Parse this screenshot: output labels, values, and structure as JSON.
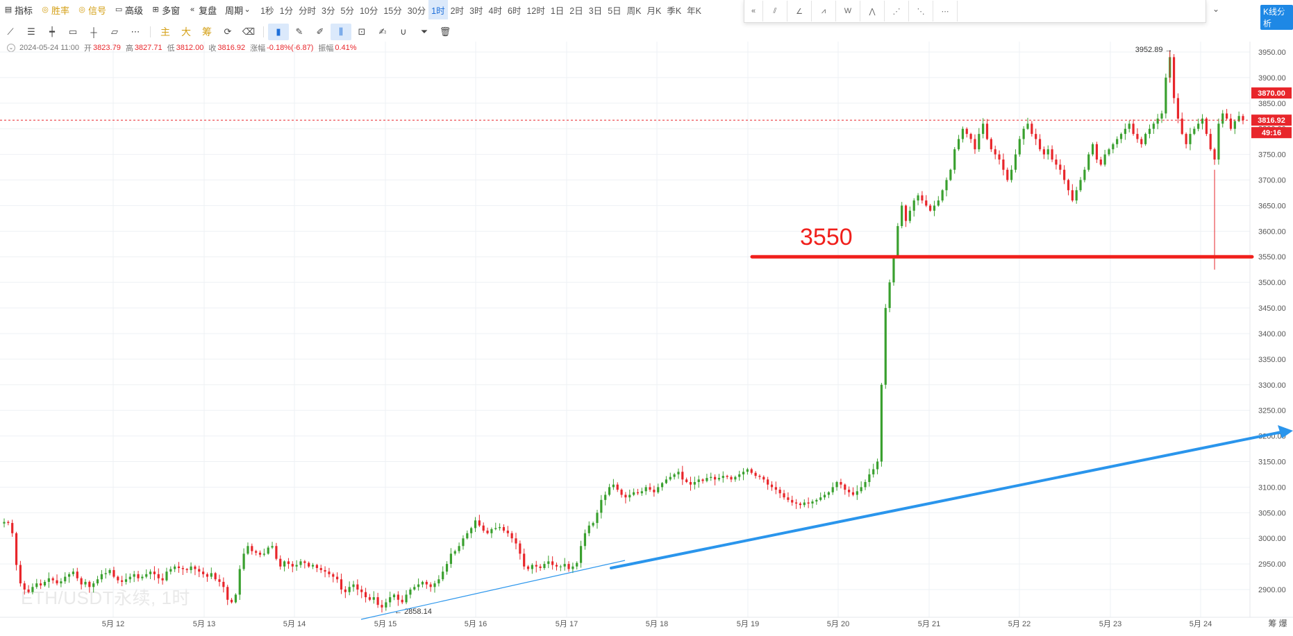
{
  "toolbar": {
    "indicators_label": "指标",
    "winrate_label": "胜率",
    "signal_label": "信号",
    "advanced_label": "高级",
    "multiwindow_label": "多窗",
    "replay_label": "复盘",
    "period_label": "周期",
    "periods": [
      "1秒",
      "1分",
      "分时",
      "3分",
      "5分",
      "10分",
      "15分",
      "30分",
      "1时",
      "2时",
      "3时",
      "4时",
      "6时",
      "12时",
      "1日",
      "2日",
      "3日",
      "5日",
      "周K",
      "月K",
      "季K",
      "年K"
    ],
    "active_period": "1时",
    "kline_button": "K线分析"
  },
  "draw_tools": {
    "main_label": "主",
    "big_label": "大",
    "chip_label": "筹"
  },
  "ohlc": {
    "date": "2024-05-24 11:00",
    "open_label": "开",
    "open": "3823.79",
    "high_label": "高",
    "high": "3827.71",
    "low_label": "低",
    "low": "3812.00",
    "close_label": "收",
    "close": "3816.92",
    "change_label": "涨幅",
    "change": "-0.18%(-6.87)",
    "amplitude_label": "振幅",
    "amplitude": "0.41%"
  },
  "watermark": "ETH/USDT永续, 1时",
  "corner_label": "筹 爆",
  "annotation_text": "3550",
  "price_tags": {
    "tag_high": "3870.00",
    "tag_current": "3816.92",
    "tag_countdown": "49:16"
  },
  "colors": {
    "up": "#3aa02f",
    "down": "#e8262b",
    "annotation_red": "#f0201c",
    "trendline_blue": "#2a95ec",
    "accent": "#1e88e5"
  },
  "chart_data": {
    "type": "candlestick",
    "symbol": "ETH/USDT永续",
    "interval": "1时",
    "y_ticks": [
      3950,
      3900,
      3850,
      3800,
      3750,
      3700,
      3650,
      3600,
      3550,
      3500,
      3450,
      3400,
      3350,
      3300,
      3250,
      3200,
      3150,
      3100,
      3050,
      3000,
      2950,
      2900
    ],
    "x_ticks": [
      "5月 12",
      "5月 13",
      "5月 14",
      "5月 15",
      "5月 16",
      "5月 17",
      "5月 18",
      "5月 19",
      "5月 20",
      "5月 21",
      "5月 22",
      "5月 23",
      "5月 24"
    ],
    "ylim": [
      2855,
      3960
    ],
    "max_label": "3952.89",
    "min_label": "2858.14",
    "horizontal_line": 3550,
    "current_price": 3816.92,
    "series_close": [
      [
        3032,
        3030,
        3010,
        2948,
        2912,
        2900,
        2895,
        2905,
        2912,
        2908,
        2915,
        2922,
        2918,
        2912,
        2916,
        2925,
        2930,
        2935,
        2922,
        2910,
        2915,
        2905,
        2912,
        2920,
        2930,
        2932,
        2938,
        2925,
        2918,
        2915,
        2920,
        2925,
        2930,
        2922,
        2925,
        2930,
        2935,
        2930,
        2922,
        2918,
        2935,
        2940,
        2945,
        2942,
        2940,
        2938,
        2945,
        2940,
        2935,
        2930,
        2925,
        2932,
        2920,
        2915
      ],
      [
        2905,
        2880,
        2875,
        2890,
        2940,
        2970,
        2985,
        2975,
        2972,
        2968,
        2970,
        2982,
        2985,
        2960,
        2945,
        2955,
        2950,
        2945,
        2948,
        2955,
        2952,
        2945,
        2948,
        2942,
        2938,
        2935,
        2930,
        2925,
        2920,
        2900,
        2895,
        2905,
        2910,
        2900,
        2895,
        2885,
        2880,
        2885,
        2870,
        2865,
        2875,
        2885,
        2890,
        2880,
        2875,
        2890,
        2900,
        2905,
        2910,
        2915,
        2910,
        2905,
        2912,
        2920
      ],
      [
        2935,
        2950,
        2970,
        2975,
        2985,
        3000,
        3010,
        3020,
        3035,
        3025,
        3015,
        3010,
        3018,
        3020,
        3022,
        3015,
        3010,
        3000,
        2990,
        2970,
        2945,
        2940,
        2948,
        2945,
        2942,
        2950,
        2955,
        2948,
        2945,
        2945,
        2950,
        2940,
        2945,
        2952,
        2985,
        3010,
        3025,
        3030,
        3050,
        3075,
        3085,
        3100,
        3105,
        3095,
        3085,
        3080,
        3085,
        3090,
        3088,
        3092,
        3100,
        3095,
        3090,
        3100
      ],
      [
        3108,
        3115,
        3120,
        3125,
        3130,
        3115,
        3110,
        3105,
        3110,
        3115,
        3112,
        3118,
        3120,
        3115,
        3118,
        3122,
        3120,
        3115,
        3120,
        3125,
        3130,
        3135,
        3128,
        3122,
        3120,
        3115,
        3105,
        3100,
        3095,
        3088,
        3080,
        3075,
        3070,
        3068,
        3065,
        3070,
        3068,
        3072,
        3075,
        3080,
        3085,
        3090,
        3100,
        3110,
        3105,
        3095,
        3090,
        3085,
        3092,
        3100,
        3110,
        3125,
        3135,
        3150
      ],
      [
        3300,
        3450,
        3500,
        3550,
        3610,
        3650,
        3620,
        3640,
        3660,
        3670,
        3660,
        3650,
        3640,
        3650,
        3660,
        3680,
        3700,
        3720,
        3760,
        3780,
        3800,
        3790,
        3780,
        3760,
        3790,
        3810,
        3780,
        3760,
        3750,
        3740,
        3720,
        3700,
        3720,
        3750,
        3780,
        3800,
        3810,
        3790,
        3780,
        3760,
        3750,
        3760,
        3740,
        3730,
        3720,
        3700,
        3680,
        3660,
        3680,
        3700,
        3720,
        3750,
        3770,
        3740
      ],
      [
        3730,
        3750,
        3760,
        3770,
        3780,
        3790,
        3800,
        3810,
        3790,
        3780,
        3770,
        3790,
        3800,
        3810,
        3820,
        3830,
        3900,
        3940,
        3860,
        3820,
        3790,
        3770,
        3790,
        3800,
        3810,
        3820,
        3790,
        3760,
        3740,
        3810,
        3830,
        3820,
        3800,
        3815,
        3825,
        3816.92
      ]
    ]
  }
}
